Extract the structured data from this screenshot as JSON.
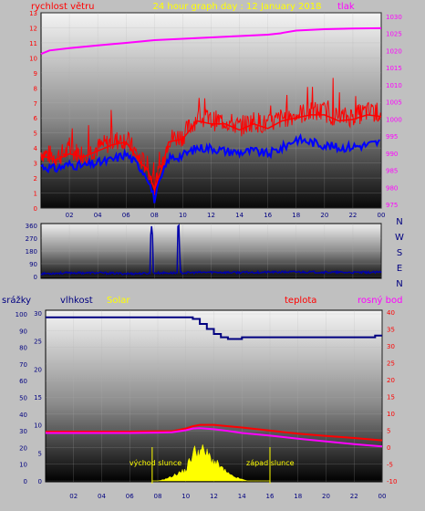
{
  "header": {
    "title": "24 hour graph day : 12 January 2018",
    "left_label": "rychlost větru",
    "right_label": "tlak"
  },
  "colors": {
    "wind_speed": "#ff0000",
    "wind_avg": "#0000ff",
    "pressure": "#ff00ff",
    "direction": "#0000aa",
    "humidity": "#000080",
    "temperature": "#ff0000",
    "dew_point": "#ff00ff",
    "solar": "#ffff00",
    "marker": "#ffff00"
  },
  "chart_data": [
    {
      "type": "line",
      "name": "wind-pressure",
      "x_ticks": [
        "02",
        "04",
        "06",
        "08",
        "10",
        "12",
        "14",
        "16",
        "18",
        "20",
        "22",
        "00"
      ],
      "xlim": [
        0,
        24
      ],
      "y_left_label": "rychlost větru",
      "y_left_ticks": [
        "0",
        "1",
        "2",
        "3",
        "4",
        "5",
        "6",
        "7",
        "8",
        "9",
        "10",
        "11",
        "12",
        "13"
      ],
      "y_left_lim": [
        0,
        13
      ],
      "y_right_label": "tlak",
      "y_right_ticks": [
        "975",
        "980",
        "985",
        "990",
        "995",
        "1000",
        "1005",
        "1010",
        "1015",
        "1020",
        "1025",
        "1030"
      ],
      "y_right_lim": [
        974,
        1031
      ],
      "series": [
        {
          "role": "wind_speed",
          "axis": "left",
          "x": [
            0,
            1,
            2,
            3,
            4,
            5,
            6,
            7,
            7.5,
            8,
            8.5,
            9,
            10,
            11,
            12,
            13,
            14,
            15,
            16,
            17,
            18,
            19,
            20,
            21,
            22,
            23,
            24
          ],
          "y": [
            3.5,
            3.2,
            3.6,
            3.4,
            3.8,
            4.2,
            4.4,
            3.0,
            2.6,
            1.2,
            2.6,
            4.4,
            4.6,
            5.8,
            5.6,
            5.6,
            5.2,
            5.6,
            5.3,
            5.8,
            6.0,
            6.2,
            6.2,
            5.8,
            5.9,
            6.2,
            6.1
          ]
        },
        {
          "role": "wind_avg",
          "axis": "left",
          "x": [
            0,
            1,
            2,
            3,
            4,
            5,
            6,
            7,
            7.5,
            8,
            8.5,
            9,
            10,
            11,
            12,
            13,
            14,
            15,
            16,
            17,
            18,
            19,
            20,
            21,
            22,
            23,
            24
          ],
          "y": [
            2.8,
            2.6,
            2.9,
            2.8,
            3.0,
            3.2,
            3.6,
            2.7,
            2.1,
            0.6,
            2.0,
            3.3,
            3.5,
            4.0,
            4.0,
            3.8,
            3.7,
            3.8,
            3.6,
            4.0,
            4.6,
            4.4,
            4.2,
            4.0,
            4.1,
            4.2,
            4.4
          ]
        },
        {
          "role": "pressure",
          "axis": "right",
          "x": [
            0,
            0.6,
            2,
            4,
            6,
            8,
            10,
            12,
            14,
            16,
            16.9,
            17.1,
            18,
            20,
            22,
            24
          ],
          "y": [
            1019,
            1020,
            1020.7,
            1021.5,
            1022.2,
            1023,
            1023.4,
            1023.8,
            1024.2,
            1024.6,
            1025,
            1025.2,
            1025.8,
            1026.2,
            1026.4,
            1026.5
          ]
        }
      ]
    },
    {
      "type": "line",
      "name": "wind-direction",
      "x_ticks": [
        "02",
        "04",
        "06",
        "08",
        "10",
        "12",
        "14",
        "16",
        "18",
        "20",
        "22",
        "00"
      ],
      "xlim": [
        0,
        24
      ],
      "y_ticks": [
        "0",
        "90",
        "180",
        "270",
        "360"
      ],
      "ylim": [
        0,
        360
      ],
      "compass": [
        "N",
        "W",
        "S",
        "E",
        "N"
      ],
      "series": [
        {
          "role": "direction",
          "x": [
            0,
            2,
            4,
            6,
            7.7,
            7.75,
            7.85,
            7.9,
            9.6,
            9.65,
            9.75,
            9.8,
            12,
            14,
            16,
            18,
            20,
            22,
            24
          ],
          "y": [
            20,
            25,
            25,
            20,
            22,
            360,
            360,
            25,
            25,
            360,
            360,
            25,
            30,
            28,
            30,
            32,
            30,
            28,
            30
          ]
        }
      ]
    },
    {
      "type": "line",
      "name": "humidity-temp-solar",
      "x_ticks": [
        "02",
        "04",
        "06",
        "08",
        "10",
        "12",
        "14",
        "16",
        "18",
        "20",
        "22",
        "00"
      ],
      "xlim": [
        0,
        24
      ],
      "precip_label": "srážky",
      "precip_ticks": [
        "0",
        "5",
        "10",
        "15",
        "20",
        "25",
        "30"
      ],
      "humidity_label": "vlhkost",
      "humidity_ticks": [
        "0",
        "10",
        "20",
        "30",
        "40",
        "50",
        "60",
        "70",
        "80",
        "90",
        "100"
      ],
      "solar_label": "Solar",
      "temp_label": "teplota",
      "dew_label": "rosný bod",
      "temp_ticks": [
        "-10",
        "-5",
        "0",
        "5",
        "10",
        "15",
        "20",
        "25",
        "30",
        "35",
        "40"
      ],
      "temp_lim": [
        -10,
        40
      ],
      "sunrise_label": "východ slunce",
      "sunset_label": "západ slunce",
      "sunrise_x": 7.6,
      "sunset_x": 16.0,
      "series": [
        {
          "role": "humidity",
          "axis": "humidity",
          "x": [
            0,
            2,
            4,
            6,
            8,
            9,
            10,
            10.5,
            11,
            11.5,
            12,
            12.5,
            13,
            14,
            16,
            18,
            20,
            22,
            23.2,
            23.5,
            24
          ],
          "y": [
            98,
            98,
            98,
            98,
            98,
            98,
            98,
            97,
            94,
            91,
            88,
            86,
            85,
            86,
            86,
            86,
            86,
            86,
            86,
            87,
            87
          ]
        },
        {
          "role": "temperature",
          "axis": "temp",
          "x": [
            0,
            2,
            4,
            6,
            8,
            9,
            10,
            10.5,
            11,
            12,
            13,
            14,
            16,
            18,
            20,
            22,
            24
          ],
          "y": [
            4.6,
            4.6,
            4.6,
            4.6,
            4.7,
            4.7,
            5.5,
            6.2,
            6.6,
            6.6,
            6.2,
            5.8,
            4.9,
            4.0,
            3.3,
            2.7,
            2.0
          ]
        },
        {
          "role": "dew_point",
          "axis": "temp",
          "x": [
            0,
            2,
            4,
            6,
            8,
            9,
            10,
            10.5,
            11,
            12,
            13,
            14,
            16,
            18,
            20,
            22,
            24
          ],
          "y": [
            4.2,
            4.2,
            4.2,
            4.2,
            4.3,
            4.4,
            5.0,
            5.5,
            5.6,
            5.3,
            4.8,
            4.2,
            3.4,
            2.5,
            1.7,
            0.9,
            0.2
          ]
        },
        {
          "role": "solar",
          "axis": "precip",
          "x": [
            7.6,
            8,
            8.5,
            9,
            9.5,
            10,
            10.3,
            10.6,
            10.9,
            11.2,
            11.6,
            12,
            12.4,
            12.8,
            13.2,
            13.6,
            14,
            14.4,
            14.8,
            15.2,
            15.6,
            16
          ],
          "y": [
            0,
            0,
            0.3,
            0.8,
            1.5,
            2.0,
            4.0,
            5.5,
            5.7,
            5.6,
            4.8,
            3.6,
            2.8,
            1.8,
            1.0,
            0.6,
            0.3,
            0,
            0,
            0,
            0,
            0
          ]
        }
      ]
    }
  ]
}
